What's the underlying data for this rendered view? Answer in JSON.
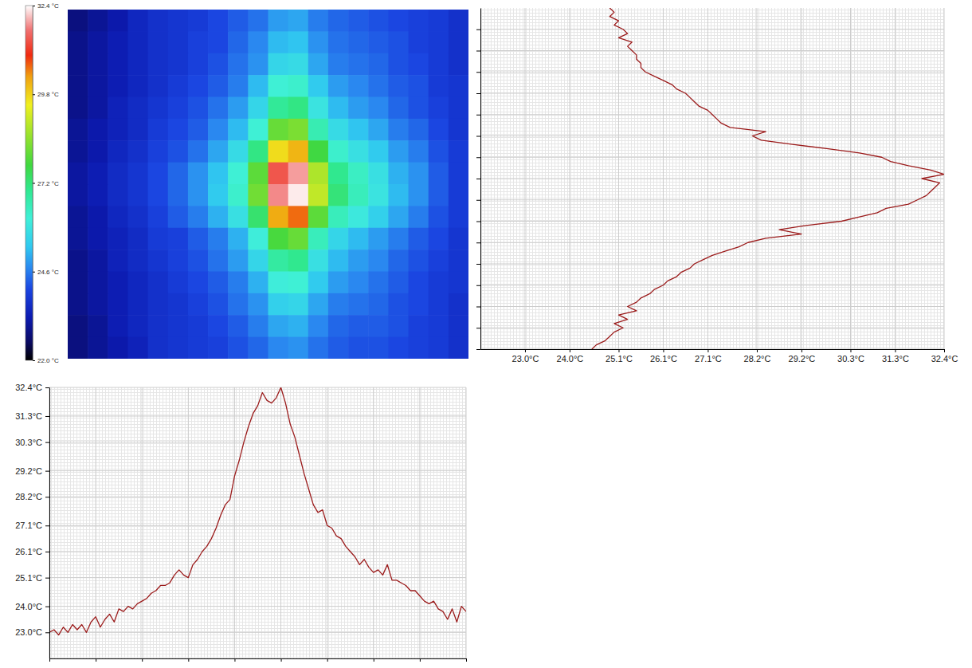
{
  "chart_data": [
    {
      "type": "heatmap",
      "tick_labels": false,
      "cells": [
        [
          22.8,
          23.0,
          23.2,
          23.5,
          23.7,
          23.8,
          23.9,
          24.1,
          24.3,
          24.5,
          24.9,
          25.0,
          24.6,
          24.4,
          24.3,
          24.2,
          24.1,
          24.0,
          23.9,
          23.7
        ],
        [
          22.9,
          23.1,
          23.3,
          23.5,
          23.7,
          23.8,
          24.0,
          24.1,
          24.4,
          24.7,
          25.2,
          25.3,
          24.8,
          24.5,
          24.4,
          24.3,
          24.2,
          24.0,
          23.9,
          23.7
        ],
        [
          22.9,
          23.1,
          23.3,
          23.5,
          23.7,
          23.8,
          24.0,
          24.2,
          24.5,
          24.8,
          25.6,
          25.7,
          25.0,
          24.6,
          24.5,
          24.4,
          24.2,
          24.1,
          23.9,
          23.7
        ],
        [
          22.9,
          23.1,
          23.3,
          23.5,
          23.7,
          23.9,
          24.1,
          24.3,
          24.6,
          25.2,
          26.2,
          26.3,
          25.4,
          24.9,
          24.7,
          24.5,
          24.3,
          24.2,
          23.9,
          23.8
        ],
        [
          22.9,
          23.1,
          23.4,
          23.6,
          23.8,
          24.0,
          24.2,
          24.5,
          24.9,
          25.6,
          26.9,
          27.1,
          25.9,
          25.2,
          24.9,
          24.7,
          24.4,
          24.2,
          24.0,
          23.8
        ],
        [
          23.0,
          23.2,
          23.4,
          23.6,
          23.9,
          24.1,
          24.3,
          24.7,
          25.2,
          26.2,
          28.1,
          28.3,
          26.6,
          25.7,
          25.3,
          25.0,
          24.6,
          24.4,
          24.1,
          23.8
        ],
        [
          23.0,
          23.2,
          23.5,
          23.7,
          24.0,
          24.2,
          24.5,
          25.0,
          25.7,
          27.1,
          29.7,
          30.1,
          27.7,
          26.3,
          25.8,
          25.4,
          24.9,
          24.6,
          24.2,
          23.9
        ],
        [
          23.1,
          23.3,
          23.6,
          23.8,
          24.1,
          24.4,
          24.8,
          25.3,
          26.2,
          28.0,
          31.4,
          31.9,
          28.8,
          27.0,
          26.4,
          25.8,
          25.1,
          24.8,
          24.3,
          23.9
        ],
        [
          23.1,
          23.3,
          23.6,
          23.8,
          24.1,
          24.4,
          24.8,
          25.4,
          26.3,
          28.2,
          31.8,
          32.3,
          29.0,
          27.2,
          26.5,
          25.9,
          25.2,
          24.8,
          24.3,
          23.9
        ],
        [
          23.0,
          23.2,
          23.5,
          23.7,
          24.0,
          24.3,
          24.6,
          25.1,
          25.8,
          27.3,
          30.2,
          30.6,
          28.0,
          26.5,
          26.0,
          25.5,
          25.0,
          24.6,
          24.2,
          23.9
        ],
        [
          23.0,
          23.2,
          23.4,
          23.6,
          23.9,
          24.0,
          24.3,
          24.6,
          25.1,
          26.1,
          27.8,
          28.1,
          26.5,
          25.6,
          25.2,
          24.9,
          24.6,
          24.3,
          24.1,
          23.8
        ],
        [
          22.9,
          23.1,
          23.4,
          23.6,
          23.8,
          24.0,
          24.2,
          24.5,
          24.9,
          25.6,
          26.8,
          27.0,
          25.8,
          25.2,
          24.9,
          24.7,
          24.4,
          24.2,
          24.0,
          23.8
        ],
        [
          22.9,
          23.1,
          23.3,
          23.5,
          23.7,
          23.9,
          24.1,
          24.3,
          24.6,
          25.1,
          26.1,
          26.2,
          25.4,
          24.9,
          24.7,
          24.5,
          24.3,
          24.1,
          23.9,
          23.8
        ],
        [
          22.9,
          23.1,
          23.3,
          23.5,
          23.7,
          23.8,
          24.0,
          24.2,
          24.5,
          24.8,
          25.5,
          25.6,
          25.0,
          24.6,
          24.5,
          24.4,
          24.2,
          24.1,
          23.9,
          23.7
        ],
        [
          22.8,
          23.0,
          23.3,
          23.5,
          23.7,
          23.8,
          23.9,
          24.1,
          24.3,
          24.6,
          25.0,
          25.1,
          24.7,
          24.4,
          24.3,
          24.3,
          24.2,
          24.0,
          23.9,
          23.7
        ],
        [
          22.8,
          23.0,
          23.2,
          23.4,
          23.7,
          23.8,
          23.9,
          24.0,
          24.2,
          24.4,
          24.7,
          24.8,
          24.5,
          24.3,
          24.2,
          24.2,
          24.1,
          24.0,
          23.9,
          23.7
        ]
      ],
      "colorbar": {
        "lim": [
          22.0,
          32.4
        ],
        "ticks": [
          {
            "value": 22.0,
            "label": "22.0 °C"
          },
          {
            "value": 24.6,
            "label": "24.6 °C"
          },
          {
            "value": 27.2,
            "label": "27.2 °C"
          },
          {
            "value": 29.8,
            "label": "29.8 °C"
          },
          {
            "value": 32.4,
            "label": "32.4 °C"
          }
        ]
      }
    },
    {
      "type": "line",
      "color": "#9b1b1b",
      "grid": true,
      "tick_labels": "x",
      "y": [
        160,
        158,
        156,
        154,
        152,
        150,
        148,
        146,
        144,
        142,
        140,
        138,
        136,
        134,
        132,
        130,
        128,
        126,
        124,
        122,
        120,
        118,
        116,
        114,
        112,
        110,
        108,
        106,
        104,
        102,
        100,
        98,
        96,
        94,
        92,
        90,
        88,
        86,
        84,
        82,
        80,
        78,
        76,
        74,
        72,
        70,
        68,
        66,
        64,
        62,
        60,
        58,
        56,
        54,
        52,
        50,
        48,
        46,
        44,
        42,
        40,
        38,
        36,
        34,
        32,
        30,
        28,
        26,
        24,
        22,
        20,
        18,
        16,
        14,
        12,
        10,
        8,
        6,
        4,
        2,
        0
      ],
      "values": [
        24.9,
        25.0,
        24.9,
        25.1,
        25.0,
        25.2,
        25.3,
        25.1,
        25.4,
        25.3,
        25.4,
        25.5,
        25.5,
        25.6,
        25.6,
        25.7,
        25.9,
        26.1,
        26.3,
        26.4,
        26.6,
        26.7,
        26.8,
        26.9,
        27.1,
        27.2,
        27.3,
        27.4,
        27.6,
        28.4,
        28.1,
        28.3,
        29.0,
        29.8,
        30.5,
        31.0,
        31.2,
        31.6,
        32.1,
        32.4,
        31.9,
        32.3,
        32.2,
        32.1,
        32.0,
        31.8,
        31.6,
        31.1,
        30.9,
        30.5,
        30.1,
        29.3,
        28.7,
        29.2,
        28.4,
        28.0,
        27.8,
        27.5,
        27.2,
        27.0,
        26.8,
        26.7,
        26.5,
        26.4,
        26.2,
        26.1,
        25.9,
        25.8,
        25.6,
        25.5,
        25.3,
        25.5,
        25.1,
        25.3,
        25.0,
        25.2,
        25.0,
        24.9,
        24.8,
        24.6,
        24.5
      ],
      "xlim": [
        22.0,
        32.4
      ],
      "xticks": [
        {
          "value": 23.0,
          "label": "23.0°C"
        },
        {
          "value": 24.0,
          "label": "24.0°C"
        },
        {
          "value": 25.1,
          "label": "25.1°C"
        },
        {
          "value": 26.1,
          "label": "26.1°C"
        },
        {
          "value": 27.1,
          "label": "27.1°C"
        },
        {
          "value": 28.2,
          "label": "28.2°C"
        },
        {
          "value": 29.2,
          "label": "29.2°C"
        },
        {
          "value": 30.3,
          "label": "30.3°C"
        },
        {
          "value": 31.3,
          "label": "31.3°C"
        },
        {
          "value": 32.4,
          "label": "32.4°C"
        }
      ],
      "ylim": [
        0,
        160
      ],
      "yticks": [
        0,
        10,
        20,
        30,
        40,
        50,
        60,
        70,
        80,
        90,
        100,
        110,
        120,
        130,
        140,
        150
      ]
    },
    {
      "type": "line",
      "color": "#9b1b1b",
      "grid": true,
      "tick_labels": "y",
      "x": [
        0,
        1,
        2,
        3,
        4,
        5,
        6,
        7,
        8,
        9,
        10,
        11,
        12,
        13,
        14,
        15,
        16,
        17,
        18,
        19,
        20,
        21,
        22,
        23,
        24,
        25,
        26,
        27,
        28,
        29,
        30,
        31,
        32,
        33,
        34,
        35,
        36,
        37,
        38,
        39,
        40,
        41,
        42,
        43,
        44,
        45,
        46,
        47,
        48,
        49,
        50,
        51,
        52,
        53,
        54,
        55,
        56,
        57,
        58,
        59,
        60,
        61,
        62,
        63,
        64,
        65,
        66,
        67,
        68,
        69,
        70,
        71,
        72,
        73,
        74,
        75,
        76,
        77,
        78,
        79,
        80,
        81,
        82,
        83,
        84,
        85,
        86,
        87,
        88,
        89,
        90
      ],
      "values": [
        23.0,
        23.1,
        22.9,
        23.2,
        23.0,
        23.3,
        23.1,
        23.3,
        23.0,
        23.4,
        23.6,
        23.2,
        23.5,
        23.7,
        23.4,
        23.9,
        23.8,
        24.0,
        23.9,
        24.1,
        24.2,
        24.3,
        24.5,
        24.6,
        24.8,
        24.8,
        24.9,
        25.2,
        25.4,
        25.2,
        25.1,
        25.6,
        25.8,
        26.1,
        26.3,
        26.6,
        27.0,
        27.5,
        27.9,
        28.1,
        29.0,
        29.6,
        30.3,
        30.9,
        31.4,
        31.7,
        32.2,
        31.9,
        31.8,
        32.0,
        32.4,
        31.8,
        31.0,
        30.5,
        29.8,
        29.1,
        28.5,
        27.9,
        27.6,
        27.7,
        27.1,
        27.0,
        26.7,
        26.6,
        26.3,
        26.1,
        25.9,
        25.6,
        25.8,
        25.5,
        25.3,
        25.4,
        25.2,
        25.6,
        25.0,
        25.0,
        24.9,
        24.8,
        24.6,
        24.6,
        24.4,
        24.2,
        24.1,
        24.2,
        23.9,
        23.8,
        23.5,
        23.9,
        23.4,
        24.0,
        23.8
      ],
      "xlim": [
        0,
        90
      ],
      "xticks": [
        0,
        10,
        20,
        30,
        40,
        50,
        60,
        70,
        80,
        90
      ],
      "ylim": [
        22.0,
        32.4
      ],
      "yticks": [
        {
          "value": 23.0,
          "label": "23.0°C"
        },
        {
          "value": 24.0,
          "label": "24.0°C"
        },
        {
          "value": 25.1,
          "label": "25.1°C"
        },
        {
          "value": 26.1,
          "label": "26.1°C"
        },
        {
          "value": 27.1,
          "label": "27.1°C"
        },
        {
          "value": 28.2,
          "label": "28.2°C"
        },
        {
          "value": 29.2,
          "label": "29.2°C"
        },
        {
          "value": 30.3,
          "label": "30.3°C"
        },
        {
          "value": 31.3,
          "label": "31.3°C"
        },
        {
          "value": 32.4,
          "label": "32.4°C"
        }
      ]
    }
  ]
}
